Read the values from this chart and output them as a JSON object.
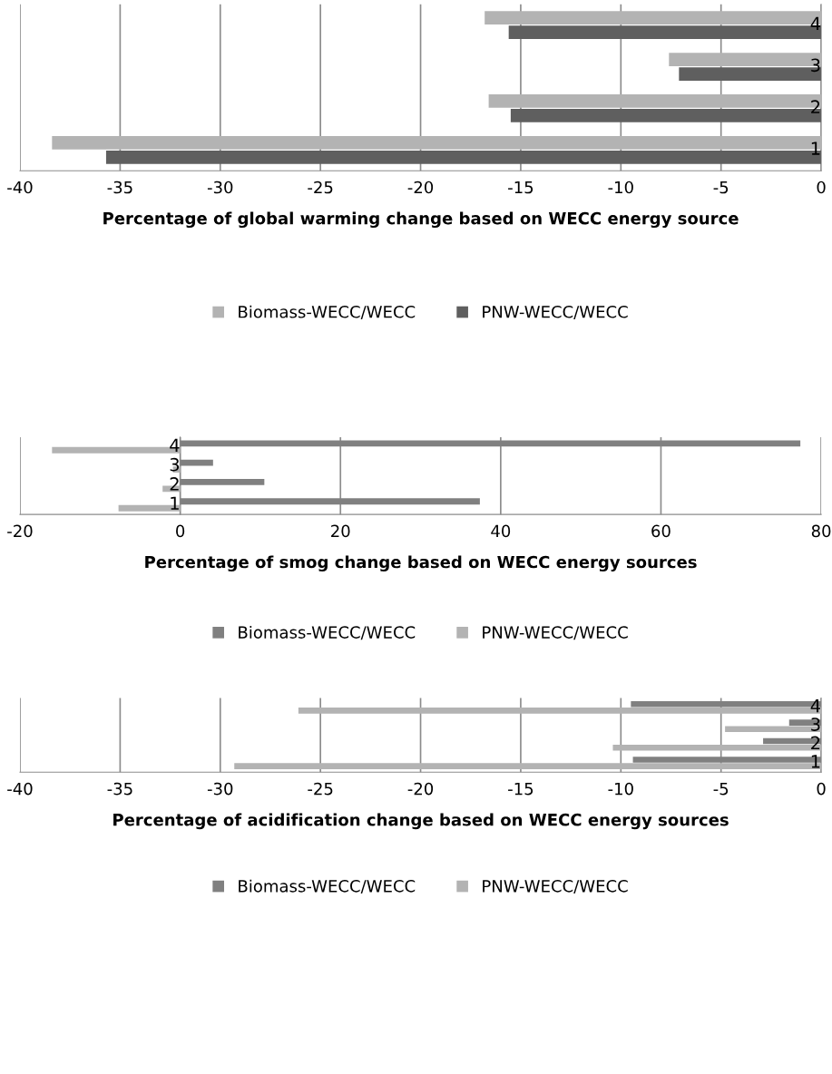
{
  "chart_data": [
    {
      "type": "bar",
      "orientation": "horizontal",
      "xlabel": "Percentage of global warming change based on WECC energy source",
      "categories": [
        "4",
        "3",
        "2",
        "1"
      ],
      "series": [
        {
          "name": "Biomass-WECC/WECC",
          "color": "#b3b3b3",
          "values": [
            -16.8,
            -7.6,
            -16.6,
            -38.4
          ]
        },
        {
          "name": "PNW-WECC/WECC",
          "color": "#5f5f5f",
          "values": [
            -15.6,
            -7.1,
            -15.5,
            -35.7
          ]
        }
      ],
      "xlim": [
        -40,
        0
      ],
      "xticks": [
        -40,
        -35,
        -30,
        -25,
        -20,
        -15,
        -10,
        -5,
        0
      ],
      "grid": "x",
      "legend": "bottom"
    },
    {
      "type": "bar",
      "orientation": "horizontal",
      "xlabel": "Percentage of smog change based on WECC energy sources",
      "categories": [
        "4",
        "3",
        "2",
        "1"
      ],
      "series": [
        {
          "name": "Biomass-WECC/WECC",
          "color": "#808080",
          "values": [
            77.4,
            4.1,
            10.5,
            37.4
          ]
        },
        {
          "name": "PNW-WECC/WECC",
          "color": "#b3b3b3",
          "values": [
            -16.0,
            -0.9,
            -2.2,
            -7.7
          ]
        }
      ],
      "xlim": [
        -20,
        80
      ],
      "xticks": [
        -20,
        0,
        20,
        40,
        60,
        80
      ],
      "grid": "x",
      "legend": "bottom"
    },
    {
      "type": "bar",
      "orientation": "horizontal",
      "xlabel": "Percentage of acidification change based on WECC energy sources",
      "categories": [
        "4",
        "3",
        "2",
        "1"
      ],
      "series": [
        {
          "name": "Biomass-WECC/WECC",
          "color": "#808080",
          "values": [
            -9.5,
            -1.6,
            -2.9,
            -9.4
          ]
        },
        {
          "name": "PNW-WECC/WECC",
          "color": "#b3b3b3",
          "values": [
            -26.1,
            -4.8,
            -10.4,
            -29.3
          ]
        }
      ],
      "xlim": [
        -40,
        0
      ],
      "xticks": [
        -40,
        -35,
        -30,
        -25,
        -20,
        -15,
        -10,
        -5,
        0
      ],
      "grid": "x",
      "legend": "bottom"
    }
  ]
}
